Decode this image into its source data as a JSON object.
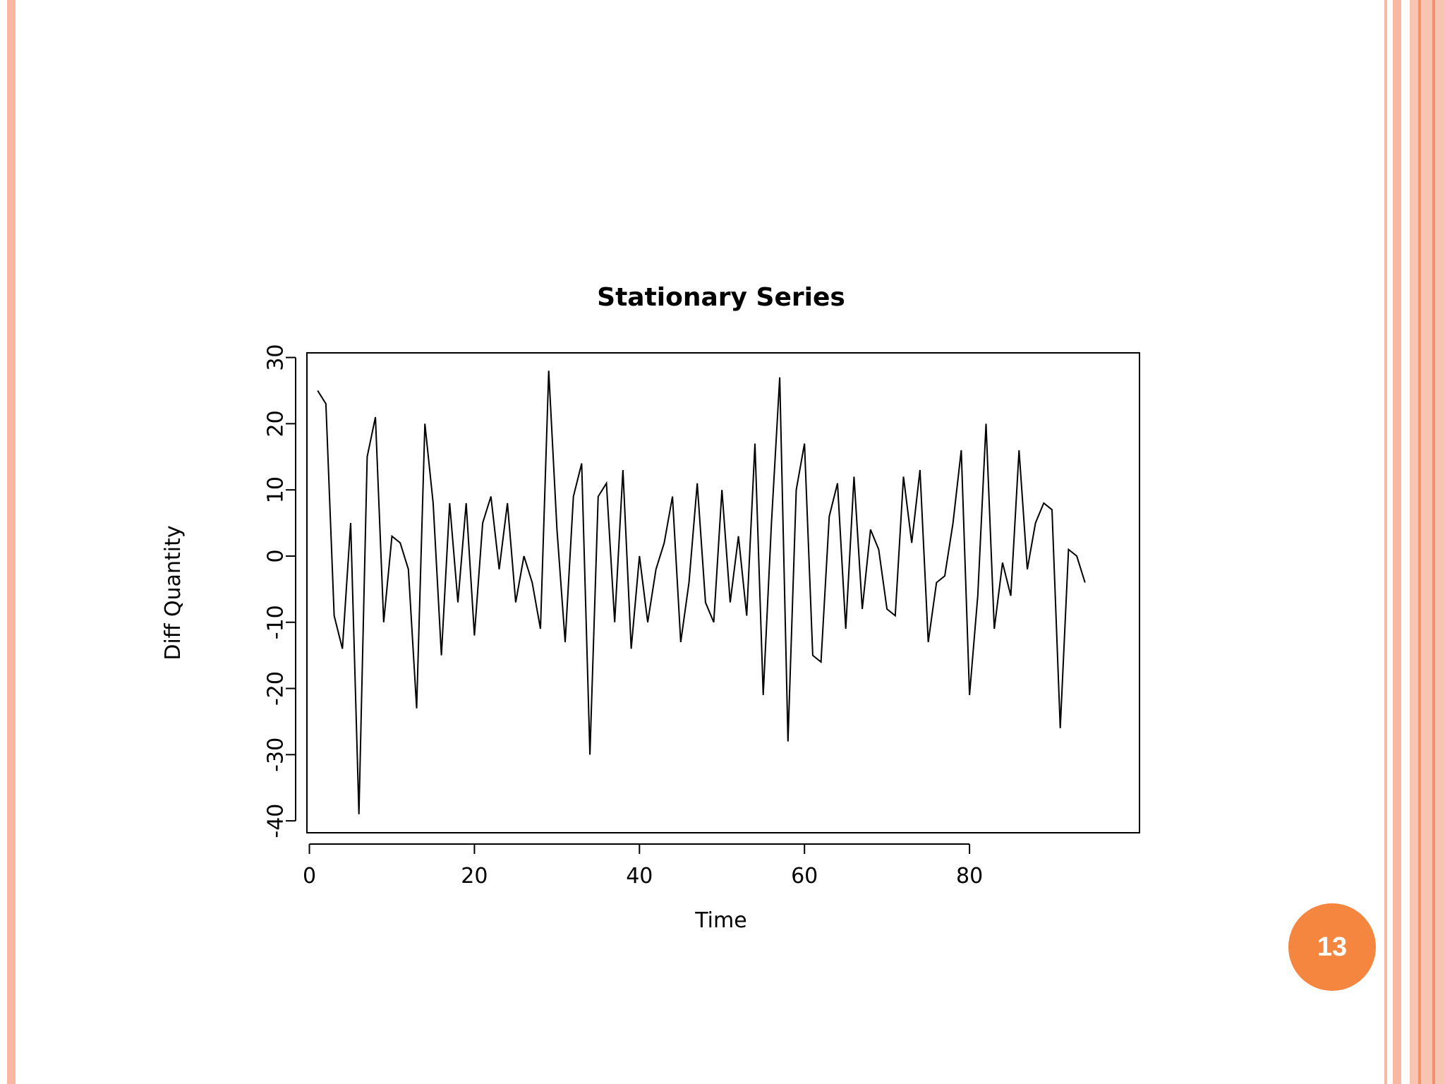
{
  "slide": {
    "page_number": "13",
    "colors": {
      "border": "#f9b8a3",
      "badge": "#f58640"
    }
  },
  "chart_data": {
    "type": "line",
    "title": "Stationary Series",
    "xlabel": "Time",
    "ylabel": "Diff Quantity",
    "xlim": [
      -0.3,
      100.6
    ],
    "ylim": [
      -41.8,
      30.7
    ],
    "xticks": [
      0,
      20,
      40,
      60,
      80
    ],
    "yticks": [
      -40,
      -30,
      -20,
      -10,
      0,
      10,
      20,
      30
    ],
    "grid": false,
    "series": [
      {
        "x": [
          1,
          2,
          3,
          4,
          5,
          6,
          7,
          8,
          9,
          10,
          11,
          12,
          13,
          14,
          15,
          16,
          17,
          18,
          19,
          20,
          21,
          22,
          23,
          24,
          25,
          26,
          27,
          28,
          29,
          30,
          31,
          32,
          33,
          34,
          35,
          36,
          37,
          38,
          39,
          40,
          41,
          42,
          43,
          44,
          45,
          46,
          47,
          48,
          49,
          50,
          51,
          52,
          53,
          54,
          55,
          56,
          57,
          58,
          59,
          60,
          61,
          62,
          63,
          64,
          65,
          66,
          67,
          68,
          69,
          70,
          71,
          72,
          73,
          74,
          75,
          76,
          77,
          78,
          79,
          80,
          81,
          82,
          83,
          84,
          85,
          86,
          87,
          88,
          89,
          90,
          91,
          92,
          93,
          94
        ],
        "values": [
          25,
          23,
          -9,
          -14,
          5,
          -39,
          15,
          21,
          -10,
          3,
          2,
          -2,
          -23,
          20,
          8,
          -15,
          8,
          -7,
          8,
          -12,
          5,
          9,
          -2,
          8,
          -7,
          0,
          -4,
          -11,
          28,
          4,
          -13,
          9,
          14,
          -30,
          9,
          11,
          -10,
          13,
          -14,
          0,
          -10,
          -2,
          2,
          9,
          -13,
          -4,
          11,
          -7,
          -10,
          10,
          -7,
          3,
          -9,
          17,
          -21,
          5,
          27,
          -28,
          10,
          17,
          -15,
          -16,
          6,
          11,
          -11,
          12,
          -8,
          4,
          1,
          -8,
          -9,
          12,
          2,
          13,
          -13,
          -4,
          -3,
          5,
          16,
          -21,
          -6,
          20,
          -11,
          -1,
          -6,
          16,
          -2,
          5,
          8,
          7,
          -26,
          1,
          0,
          -4
        ]
      }
    ]
  }
}
